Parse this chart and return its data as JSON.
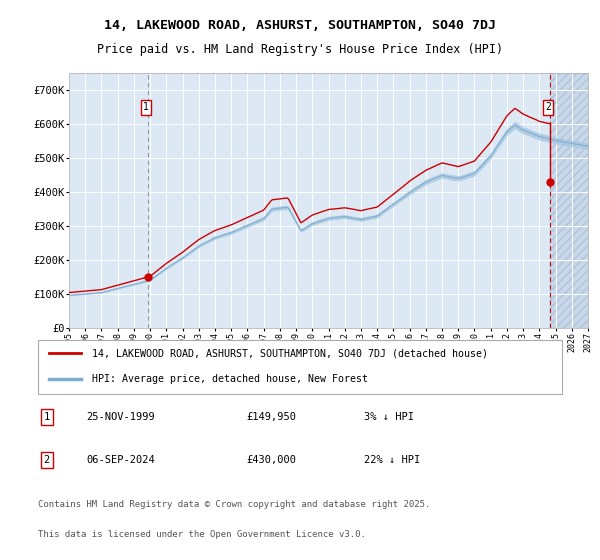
{
  "title_line1": "14, LAKEWOOD ROAD, ASHURST, SOUTHAMPTON, SO40 7DJ",
  "title_line2": "Price paid vs. HM Land Registry's House Price Index (HPI)",
  "bg_color": "#dce9f5",
  "hatch_color": "#c8d8ea",
  "grid_color": "#ffffff",
  "red_line_color": "#cc0000",
  "blue_line_color": "#7fafd0",
  "blue_fill_color": "#aac8e0",
  "transaction1_date": 1999.9,
  "transaction1_price": 149950,
  "transaction1_label": "1",
  "transaction2_date": 2024.68,
  "transaction2_price": 430000,
  "transaction2_label": "2",
  "year_start": 1995.0,
  "year_end": 2027.0,
  "ymin": 0,
  "ymax": 750000,
  "yticks": [
    0,
    100000,
    200000,
    300000,
    400000,
    500000,
    600000,
    700000
  ],
  "ytick_labels": [
    "£0",
    "£100K",
    "£200K",
    "£300K",
    "£400K",
    "£500K",
    "£600K",
    "£700K"
  ],
  "footer_line1": "Contains HM Land Registry data © Crown copyright and database right 2025.",
  "footer_line2": "This data is licensed under the Open Government Licence v3.0.",
  "legend_label1": "14, LAKEWOOD ROAD, ASHURST, SOUTHAMPTON, SO40 7DJ (detached house)",
  "legend_label2": "HPI: Average price, detached house, New Forest",
  "table_row1": [
    "1",
    "25-NOV-1999",
    "£149,950",
    "3% ↓ HPI"
  ],
  "table_row2": [
    "2",
    "06-SEP-2024",
    "£430,000",
    "22% ↓ HPI"
  ]
}
